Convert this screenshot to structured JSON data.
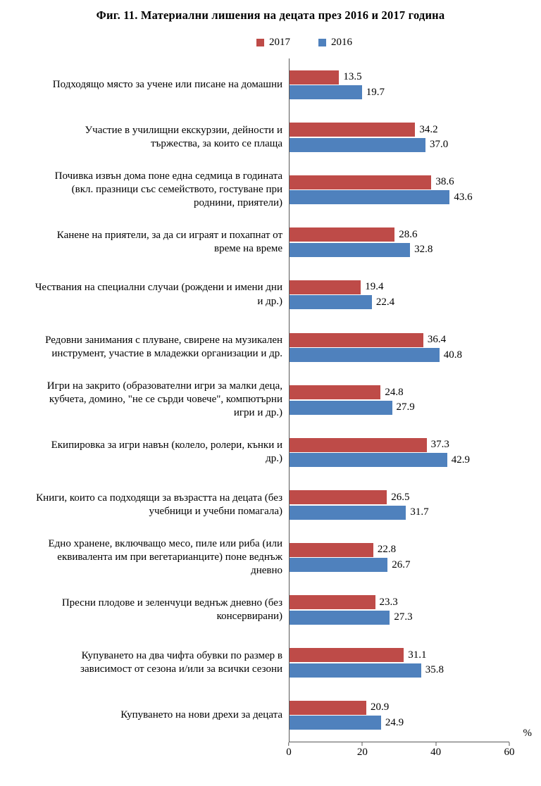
{
  "title": "Фиг. 11. Материални лишения на децата през 2016 и 2017 година",
  "chart_data": {
    "type": "bar",
    "orientation": "horizontal",
    "title": "Фиг. 11. Материални лишения на децата през 2016 и 2017 година",
    "categories": [
      "Подходящо място за учене или писане на домашни",
      "Участие в училищни екскурзии, дейности и тържества, за които се плаща",
      "Почивка извън дома поне една седмица в годината (вкл. празници със семейството, гостуване при роднини, приятели)",
      "Канене на приятели, за да си играят и похапнат от време на време",
      "Чествания на специални случаи (рождени и имени дни и др.)",
      "Редовни занимания с плуване, свирене на музикален инструмент, участие в младежки организации и др.",
      "Игри на закрито (образователни игри за малки деца, кубчета, домино, \"не се сърди човече\", компютърни игри и др.)",
      "Екипировка за игри навън (колело, ролери, кънки и др.)",
      "Книги, които са подходящи за възрастта на децата (без учебници и учебни помагала)",
      "Едно хранене, включващо месо, пиле или риба (или еквивалента им при вегетарианците) поне веднъж дневно",
      "Пресни плодове и зеленчуци веднъж дневно (без консервирани)",
      "Купуването на два чифта обувки по размер в зависимост от сезона и/или за всички сезони",
      "Купуването на нови дрехи за децата"
    ],
    "series": [
      {
        "name": "2017",
        "color": "#BE4B48",
        "values": [
          13.5,
          34.2,
          38.6,
          28.6,
          19.4,
          36.4,
          24.8,
          37.3,
          26.5,
          22.8,
          23.3,
          31.1,
          20.9
        ]
      },
      {
        "name": "2016",
        "color": "#4F81BD",
        "values": [
          19.7,
          37.0,
          43.6,
          32.8,
          22.4,
          40.8,
          27.9,
          42.9,
          31.7,
          26.7,
          27.3,
          35.8,
          24.9
        ]
      }
    ],
    "xlim": [
      0,
      60
    ],
    "xticks": [
      0,
      20,
      40,
      60
    ],
    "x_unit": "%",
    "grid": false,
    "legend_position": "top-center"
  }
}
